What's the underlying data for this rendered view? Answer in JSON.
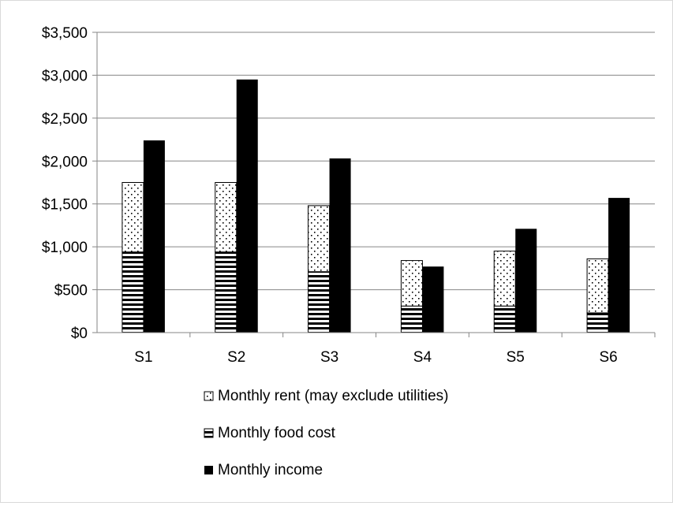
{
  "chart_data": {
    "type": "bar",
    "stacked_series": [
      "Monthly food cost",
      "Monthly rent (may exclude utilities)"
    ],
    "categories": [
      "S1",
      "S2",
      "S3",
      "S4",
      "S5",
      "S6"
    ],
    "series": [
      {
        "name": "Monthly rent (may exclude utilities)",
        "values": [
          810,
          810,
          770,
          530,
          640,
          630
        ],
        "stack": "expenses",
        "pattern": "dots"
      },
      {
        "name": "Monthly food cost",
        "values": [
          940,
          940,
          710,
          310,
          310,
          230
        ],
        "stack": "expenses",
        "pattern": "horizontal-stripes"
      },
      {
        "name": "Monthly income",
        "values": [
          2240,
          2950,
          2030,
          770,
          1210,
          1570
        ],
        "stack": "income",
        "pattern": "solid"
      }
    ],
    "ylim": [
      0,
      3500
    ],
    "yticks": [
      0,
      500,
      1000,
      1500,
      2000,
      2500,
      3000,
      3500
    ],
    "ytick_labels": [
      "$0",
      "$500",
      "$1,000",
      "$1,500",
      "$2,000",
      "$2,500",
      "$3,000",
      "$3,500"
    ],
    "grid": true,
    "legend_position": "bottom",
    "colors": {
      "income": "#000000",
      "grid": "#868686"
    }
  }
}
